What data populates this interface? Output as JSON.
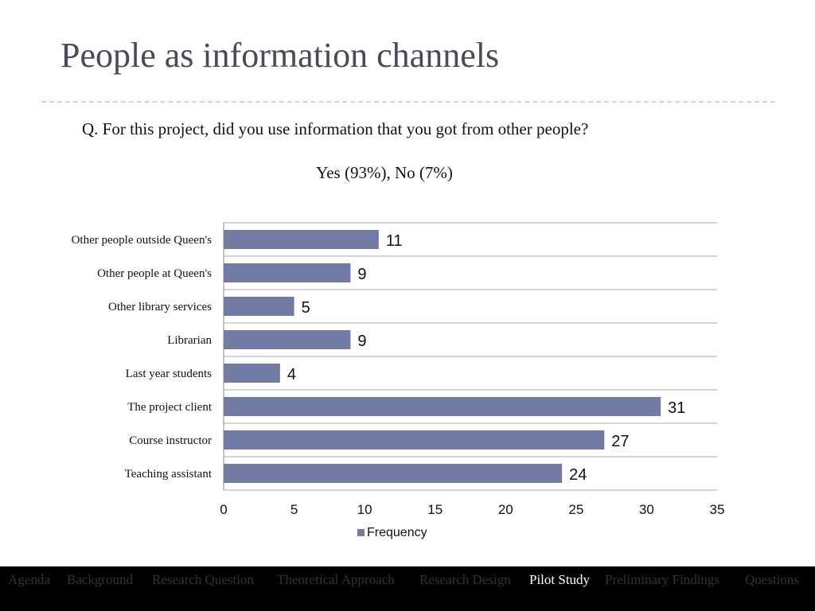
{
  "slide": {
    "title": "People as information channels",
    "question": "Q. For this project, did you use information that you got from other people?",
    "answer": "Yes (93%), No (7%)"
  },
  "nav": {
    "items": [
      {
        "label": "Agenda",
        "active": false
      },
      {
        "label": "Background",
        "active": false
      },
      {
        "label": "Research  Question",
        "active": false
      },
      {
        "label": "Theoretical  Approach",
        "active": false
      },
      {
        "label": "Research Design",
        "active": false
      },
      {
        "label": "Pilot Study",
        "active": true
      },
      {
        "label": "Preliminary Findings",
        "active": false
      },
      {
        "label": "Questions",
        "active": false
      }
    ]
  },
  "chart_data": {
    "type": "bar",
    "orientation": "horizontal",
    "categories": [
      "Other people outside Queen's",
      "Other people at Queen's",
      "Other library services",
      "Librarian",
      "Last year students",
      "The project client",
      "Course instructor",
      "Teaching assistant"
    ],
    "series": [
      {
        "name": "Frequency",
        "values": [
          11,
          9,
          5,
          9,
          4,
          31,
          27,
          24
        ]
      }
    ],
    "xlim": [
      0,
      35
    ],
    "xticks": [
      0,
      5,
      10,
      15,
      20,
      25,
      30,
      35
    ],
    "grid": "horizontal lines between categories",
    "legend_position": "bottom",
    "bar_color": "#717ba4",
    "data_labels": true
  }
}
